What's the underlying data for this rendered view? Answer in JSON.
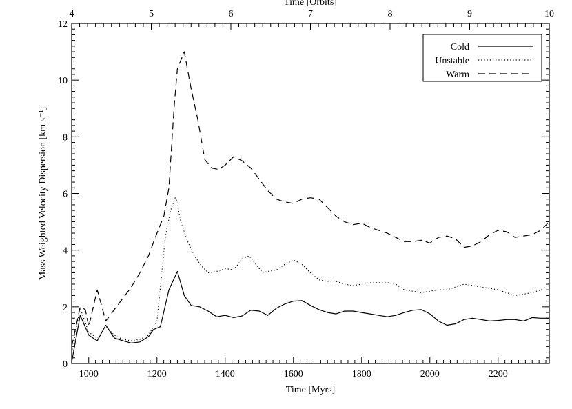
{
  "chart_data": {
    "type": "line",
    "title": "",
    "xlabel": "Time [Myrs]",
    "ylabel": "Mass Weighted Velocity Dispersion [km s⁻¹]",
    "top_xlabel": "Time [Orbits]",
    "xlim": [
      950,
      2350
    ],
    "ylim": [
      0,
      12
    ],
    "top_xlim": [
      4,
      10
    ],
    "x_ticks": [
      "1000",
      "1200",
      "1400",
      "1600",
      "1800",
      "2000",
      "2200"
    ],
    "x_tick_values": [
      1000,
      1200,
      1400,
      1600,
      1800,
      2000,
      2200
    ],
    "y_ticks": [
      "0",
      "2",
      "4",
      "6",
      "8",
      "10",
      "12"
    ],
    "y_tick_values": [
      0,
      2,
      4,
      6,
      8,
      10,
      12
    ],
    "top_ticks": [
      "4",
      "5",
      "6",
      "7",
      "8",
      "9",
      "10"
    ],
    "top_tick_values": [
      4,
      5,
      6,
      7,
      8,
      9,
      10
    ],
    "legend_position": "top-right",
    "series": [
      {
        "name": "Cold",
        "style": "solid",
        "x": [
          950,
          975,
          1000,
          1025,
          1050,
          1075,
          1100,
          1125,
          1150,
          1175,
          1190,
          1210,
          1235,
          1260,
          1280,
          1300,
          1325,
          1350,
          1375,
          1400,
          1425,
          1450,
          1475,
          1500,
          1525,
          1550,
          1575,
          1600,
          1625,
          1650,
          1675,
          1700,
          1725,
          1750,
          1775,
          1800,
          1825,
          1850,
          1875,
          1900,
          1925,
          1950,
          1975,
          2000,
          2025,
          2050,
          2075,
          2100,
          2125,
          2150,
          2175,
          2200,
          2225,
          2250,
          2275,
          2300,
          2325,
          2350
        ],
        "values": [
          0.05,
          1.7,
          1.0,
          0.8,
          1.35,
          0.9,
          0.8,
          0.72,
          0.76,
          0.95,
          1.2,
          1.3,
          2.6,
          3.25,
          2.4,
          2.05,
          2.0,
          1.85,
          1.65,
          1.7,
          1.62,
          1.68,
          1.88,
          1.85,
          1.7,
          1.95,
          2.1,
          2.2,
          2.22,
          2.05,
          1.9,
          1.8,
          1.75,
          1.85,
          1.85,
          1.8,
          1.75,
          1.7,
          1.65,
          1.7,
          1.8,
          1.88,
          1.9,
          1.75,
          1.5,
          1.35,
          1.4,
          1.55,
          1.6,
          1.55,
          1.5,
          1.52,
          1.55,
          1.55,
          1.5,
          1.62,
          1.6,
          1.6
        ]
      },
      {
        "name": "Unstable",
        "style": "dotted",
        "x": [
          950,
          975,
          1000,
          1025,
          1050,
          1075,
          1100,
          1125,
          1150,
          1175,
          1200,
          1225,
          1240,
          1255,
          1270,
          1290,
          1310,
          1330,
          1350,
          1375,
          1400,
          1425,
          1450,
          1470,
          1490,
          1510,
          1525,
          1550,
          1575,
          1600,
          1625,
          1650,
          1675,
          1700,
          1725,
          1750,
          1775,
          1800,
          1825,
          1850,
          1875,
          1900,
          1925,
          1950,
          1975,
          2000,
          2025,
          2050,
          2075,
          2100,
          2125,
          2150,
          2175,
          2200,
          2225,
          2250,
          2275,
          2300,
          2325,
          2350
        ],
        "values": [
          0.4,
          1.95,
          1.1,
          0.9,
          1.3,
          1.0,
          0.85,
          0.8,
          0.85,
          1.0,
          1.5,
          4.5,
          5.4,
          5.9,
          5.0,
          4.3,
          3.8,
          3.45,
          3.2,
          3.25,
          3.35,
          3.3,
          3.7,
          3.8,
          3.5,
          3.2,
          3.25,
          3.3,
          3.5,
          3.65,
          3.5,
          3.2,
          2.95,
          2.9,
          2.9,
          2.8,
          2.75,
          2.8,
          2.85,
          2.85,
          2.85,
          2.8,
          2.6,
          2.55,
          2.5,
          2.55,
          2.6,
          2.6,
          2.7,
          2.8,
          2.75,
          2.7,
          2.65,
          2.6,
          2.5,
          2.4,
          2.45,
          2.5,
          2.6,
          2.8
        ]
      },
      {
        "name": "Warm",
        "style": "dashed",
        "x": [
          950,
          975,
          990,
          1000,
          1025,
          1050,
          1075,
          1100,
          1125,
          1150,
          1175,
          1200,
          1220,
          1235,
          1250,
          1260,
          1280,
          1300,
          1320,
          1340,
          1360,
          1380,
          1400,
          1425,
          1450,
          1475,
          1500,
          1525,
          1550,
          1575,
          1600,
          1625,
          1650,
          1675,
          1700,
          1725,
          1750,
          1775,
          1800,
          1825,
          1850,
          1875,
          1900,
          1925,
          1950,
          1975,
          2000,
          2025,
          2050,
          2075,
          2100,
          2125,
          2150,
          2175,
          2200,
          2225,
          2250,
          2275,
          2300,
          2325,
          2350
        ],
        "values": [
          0.6,
          2.0,
          1.9,
          1.3,
          2.6,
          1.5,
          1.9,
          2.3,
          2.7,
          3.2,
          3.8,
          4.6,
          5.2,
          6.2,
          9.0,
          10.4,
          11.0,
          9.7,
          8.6,
          7.2,
          6.9,
          6.85,
          7.0,
          7.3,
          7.15,
          6.9,
          6.5,
          6.1,
          5.8,
          5.7,
          5.65,
          5.8,
          5.85,
          5.8,
          5.5,
          5.2,
          5.0,
          4.9,
          4.95,
          4.8,
          4.7,
          4.6,
          4.45,
          4.3,
          4.3,
          4.35,
          4.25,
          4.45,
          4.5,
          4.4,
          4.1,
          4.15,
          4.3,
          4.55,
          4.7,
          4.65,
          4.45,
          4.5,
          4.55,
          4.7,
          5.0
        ]
      }
    ]
  }
}
